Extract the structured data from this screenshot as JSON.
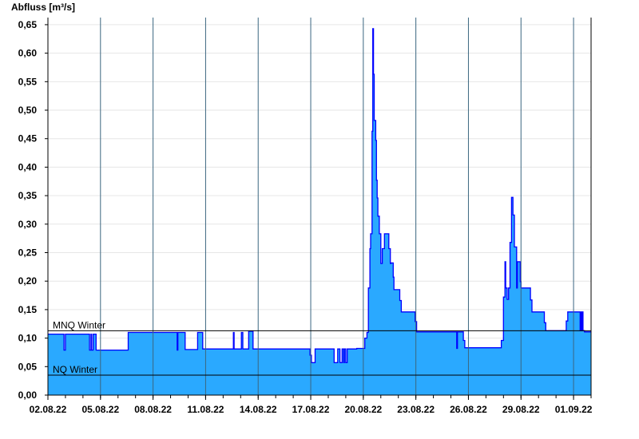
{
  "chart_data": {
    "type": "area",
    "title": "",
    "ylabel": "Abfluss [m³/s]",
    "xlabel": "",
    "xlim": [
      "02.08.22 00:00",
      "02.09.22 00:00"
    ],
    "ylim": [
      0,
      0.6625
    ],
    "y_ticks": [
      "0,00",
      "0,05",
      "0,10",
      "0,15",
      "0,20",
      "0,25",
      "0,30",
      "0,35",
      "0,40",
      "0,45",
      "0,50",
      "0,55",
      "0,60",
      "0,65"
    ],
    "x_ticks": [
      "02.08.22",
      "05.08.22",
      "08.08.22",
      "11.08.22",
      "14.08.22",
      "17.08.22",
      "20.08.22",
      "23.08.22",
      "26.08.22",
      "29.08.22",
      "01.09.22"
    ],
    "grid": true,
    "colors": {
      "fill": "#2aa9ff",
      "line": "#0000ff",
      "reference": "#000000",
      "grid": "#e6e6e6",
      "vgrid": "#3b6680"
    },
    "reference_lines": [
      {
        "label": "MNQ Winter",
        "value": 0.113
      },
      {
        "label": "NQ Winter",
        "value": 0.035
      }
    ],
    "series": [
      {
        "step": "post",
        "points": [
          [
            "02.08.22 00:00",
            0.107
          ],
          [
            "02.08.22 22:00",
            0.079
          ],
          [
            "03.08.22 00:00",
            0.107
          ],
          [
            "04.08.22 09:00",
            0.079
          ],
          [
            "04.08.22 11:00",
            0.107
          ],
          [
            "04.08.22 12:00",
            0.079
          ],
          [
            "04.08.22 14:00",
            0.107
          ],
          [
            "04.08.22 18:00",
            0.079
          ],
          [
            "06.08.22 14:00",
            0.11
          ],
          [
            "09.08.22 09:00",
            0.079
          ],
          [
            "09.08.22 10:00",
            0.11
          ],
          [
            "09.08.22 20:00",
            0.08
          ],
          [
            "10.08.22 13:00",
            0.11
          ],
          [
            "10.08.22 20:00",
            0.081
          ],
          [
            "12.08.22 14:00",
            0.11
          ],
          [
            "12.08.22 15:00",
            0.081
          ],
          [
            "13.08.22 01:00",
            0.11
          ],
          [
            "13.08.22 03:00",
            0.081
          ],
          [
            "13.08.22 11:00",
            0.112
          ],
          [
            "13.08.22 17:00",
            0.081
          ],
          [
            "16.08.22 23:00",
            0.07
          ],
          [
            "17.08.22 01:00",
            0.057
          ],
          [
            "17.08.22 06:00",
            0.081
          ],
          [
            "18.08.22 08:00",
            0.057
          ],
          [
            "18.08.22 13:00",
            0.081
          ],
          [
            "18.08.22 16:00",
            0.057
          ],
          [
            "18.08.22 19:00",
            0.081
          ],
          [
            "18.08.22 21:00",
            0.057
          ],
          [
            "18.08.22 22:00",
            0.081
          ],
          [
            "19.08.22 00:00",
            0.057
          ],
          [
            "19.08.22 02:00",
            0.081
          ],
          [
            "19.08.22 15:00",
            0.082
          ],
          [
            "20.08.22 02:00",
            0.1
          ],
          [
            "20.08.22 05:00",
            0.11
          ],
          [
            "20.08.22 07:00",
            0.188
          ],
          [
            "20.08.22 09:00",
            0.257
          ],
          [
            "20.08.22 10:00",
            0.283
          ],
          [
            "20.08.22 12:00",
            0.463
          ],
          [
            "20.08.22 13:00",
            0.643
          ],
          [
            "20.08.22 14:00",
            0.563
          ],
          [
            "20.08.22 15:00",
            0.482
          ],
          [
            "20.08.22 17:00",
            0.447
          ],
          [
            "20.08.22 18:00",
            0.377
          ],
          [
            "20.08.22 19:00",
            0.346
          ],
          [
            "20.08.22 20:00",
            0.314
          ],
          [
            "20.08.22 22:00",
            0.283
          ],
          [
            "21.08.22 00:00",
            0.231
          ],
          [
            "21.08.22 02:00",
            0.257
          ],
          [
            "21.08.22 05:00",
            0.283
          ],
          [
            "21.08.22 11:00",
            0.257
          ],
          [
            "21.08.22 13:00",
            0.231
          ],
          [
            "21.08.22 14:00",
            0.232
          ],
          [
            "21.08.22 17:00",
            0.207
          ],
          [
            "21.08.22 18:00",
            0.185
          ],
          [
            "22.08.22 02:00",
            0.166
          ],
          [
            "22.08.22 04:00",
            0.146
          ],
          [
            "22.08.22 23:00",
            0.129
          ],
          [
            "23.08.22 01:00",
            0.111
          ],
          [
            "25.08.22 08:00",
            0.082
          ],
          [
            "25.08.22 09:00",
            0.111
          ],
          [
            "25.08.22 17:00",
            0.096
          ],
          [
            "25.08.22 19:00",
            0.083
          ],
          [
            "27.08.22 21:00",
            0.096
          ],
          [
            "28.08.22 00:00",
            0.172
          ],
          [
            "28.08.22 02:00",
            0.234
          ],
          [
            "28.08.22 03:00",
            0.188
          ],
          [
            "28.08.22 05:00",
            0.168
          ],
          [
            "28.08.22 07:00",
            0.188
          ],
          [
            "28.08.22 09:00",
            0.268
          ],
          [
            "28.08.22 11:00",
            0.347
          ],
          [
            "28.08.22 13:00",
            0.316
          ],
          [
            "28.08.22 15:00",
            0.26
          ],
          [
            "28.08.22 18:00",
            0.188
          ],
          [
            "28.08.22 19:00",
            0.234
          ],
          [
            "28.08.22 23:00",
            0.199
          ],
          [
            "29.08.22 00:00",
            0.188
          ],
          [
            "29.08.22 13:00",
            0.167
          ],
          [
            "29.08.22 15:00",
            0.146
          ],
          [
            "30.08.22 08:00",
            0.127
          ],
          [
            "30.08.22 10:00",
            0.113
          ],
          [
            "31.08.22 14:00",
            0.13
          ],
          [
            "31.08.22 16:00",
            0.146
          ],
          [
            "01.09.22 09:00",
            0.113
          ],
          [
            "01.09.22 10:00",
            0.146
          ],
          [
            "01.09.22 11:00",
            0.113
          ],
          [
            "01.09.22 12:00",
            0.146
          ],
          [
            "01.09.22 13:00",
            0.113
          ],
          [
            "01.09.22 15:00",
            0.111
          ],
          [
            "02.09.22 00:00",
            0.111
          ]
        ]
      }
    ]
  }
}
